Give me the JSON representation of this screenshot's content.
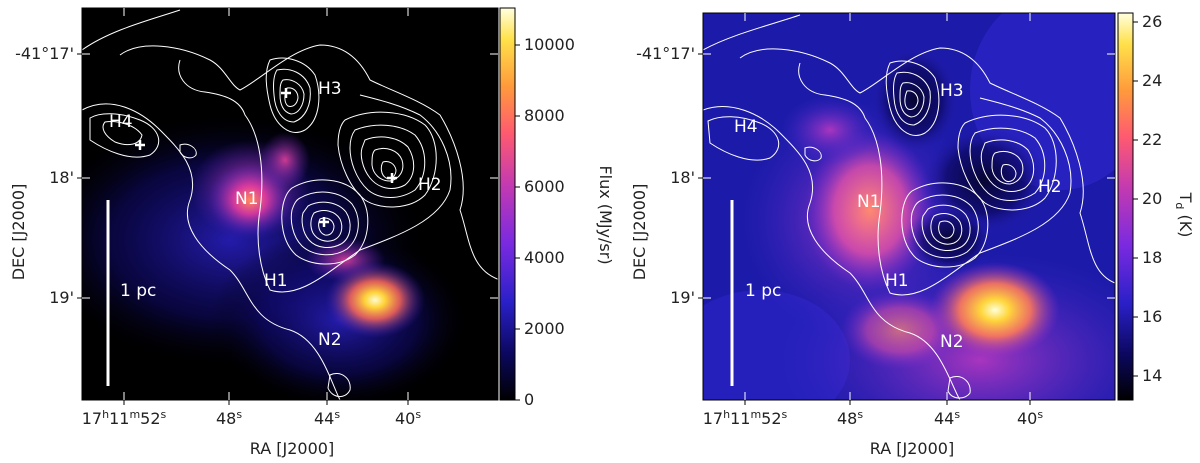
{
  "panels": [
    {
      "id": "flux",
      "dec_ticks": [
        "-41°17'",
        "18'",
        "19'"
      ],
      "ra_ticks": [
        "17h11m52s",
        "48s",
        "44s",
        "40s"
      ],
      "ylabel": "DEC [J2000]",
      "xlabel": "RA [J2000]",
      "colorbar_label": "Flux (MJy/sr)",
      "colorbar_ticks": [
        "0",
        "2000",
        "4000",
        "6000",
        "8000",
        "10000"
      ],
      "colorbar_range": [
        0,
        11000
      ],
      "scale_label": "1 pc",
      "regions": [
        "H1",
        "H2",
        "H3",
        "H4",
        "N1",
        "N2"
      ]
    },
    {
      "id": "temperature",
      "dec_ticks": [
        "-41°17'",
        "18'",
        "19'"
      ],
      "ra_ticks": [
        "17h11m52s",
        "48s",
        "44s",
        "40s"
      ],
      "ylabel": "DEC [J2000]",
      "xlabel": "RA [J2000]",
      "colorbar_label": "Td (K)",
      "colorbar_ticks": [
        "14",
        "16",
        "18",
        "20",
        "22",
        "24",
        "26"
      ],
      "colorbar_range": [
        13.2,
        26.3
      ],
      "scale_label": "1 pc",
      "regions": [
        "H1",
        "H2",
        "H3",
        "H4",
        "N1",
        "N2"
      ]
    }
  ],
  "colors": {
    "colormap": [
      "#000000",
      "#1a0a8c",
      "#3a2ad6",
      "#8a2be2",
      "#d23aa8",
      "#ff5a6e",
      "#ff9a3c",
      "#ffe14a",
      "#ffffdc"
    ],
    "contour": "#ffffff"
  }
}
